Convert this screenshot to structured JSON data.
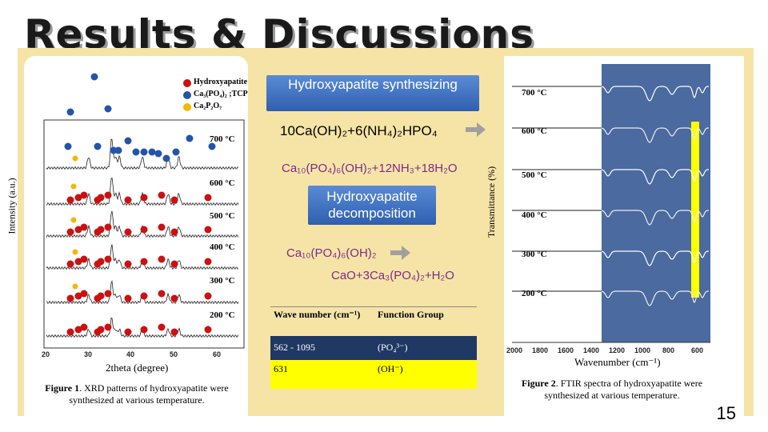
{
  "slide": {
    "title": "Results & Discussions",
    "page_number": "15"
  },
  "center": {
    "synth_label": "Hydroxyapatite synthesizing",
    "reactant_eq": "10Ca(OH)₂+6(NH₄)₂HPO₄",
    "product_eq": "Ca₁₀(PO₄)₆(OH)₂+12NH₃+18H₂O",
    "decomp_label": "Hydroxyapatite decomposition",
    "decomp_reactant": "Ca₁₀(PO₄)₆(OH)₂",
    "decomp_product": "CaO+3Ca₃(PO₄)₂+H₂O"
  },
  "table": {
    "headers": [
      "Wave number (cm⁻¹)",
      "Function Group"
    ],
    "rows": [
      {
        "wave": "562 - 1095",
        "group": "(PO₄³⁻)",
        "bg": "#1f3864",
        "fg": "#ffffff"
      },
      {
        "wave": "631",
        "group": "(OH⁻)",
        "bg": "#ffff00",
        "fg": "#000000"
      }
    ]
  },
  "xrd": {
    "legend": [
      {
        "label": "Hydroxyapatite",
        "color": "#cc1111"
      },
      {
        "label": "Ca₃(PO₄)₂ ;TCP",
        "color": "#2255aa"
      },
      {
        "label": "Ca₂P₂O₇",
        "color": "#f5b800"
      }
    ],
    "temps": [
      "700 °C",
      "600 °C",
      "500 °C",
      "400 °C",
      "300 °C",
      "200 °C"
    ],
    "x_ticks": [
      "20",
      "30",
      "40",
      "50",
      "60"
    ],
    "xlabel": "2theta (degree)",
    "ylabel": "Intensity (a.u.)",
    "caption_bold": "Figure 1",
    "caption": ". XRD patterns of hydroxyapatite were synthesized at various temperature."
  },
  "ftir": {
    "temps": [
      "700 °C",
      "600 °C",
      "500 °C",
      "400 °C",
      "300 °C",
      "200 °C"
    ],
    "x_ticks": [
      "2000",
      "1800",
      "1600",
      "1400",
      "1200",
      "1000",
      "800",
      "600"
    ],
    "xlabel": "Wavenumber (cm⁻¹)",
    "ylabel": "Transmittance (%)",
    "caption_bold": "Figure 2",
    "caption": ". FTIR spectra of hydroxyapatite were synthesized at various temperature.",
    "highlight_blue": "#4a6aa0",
    "highlight_yellow": "#ffff00"
  }
}
